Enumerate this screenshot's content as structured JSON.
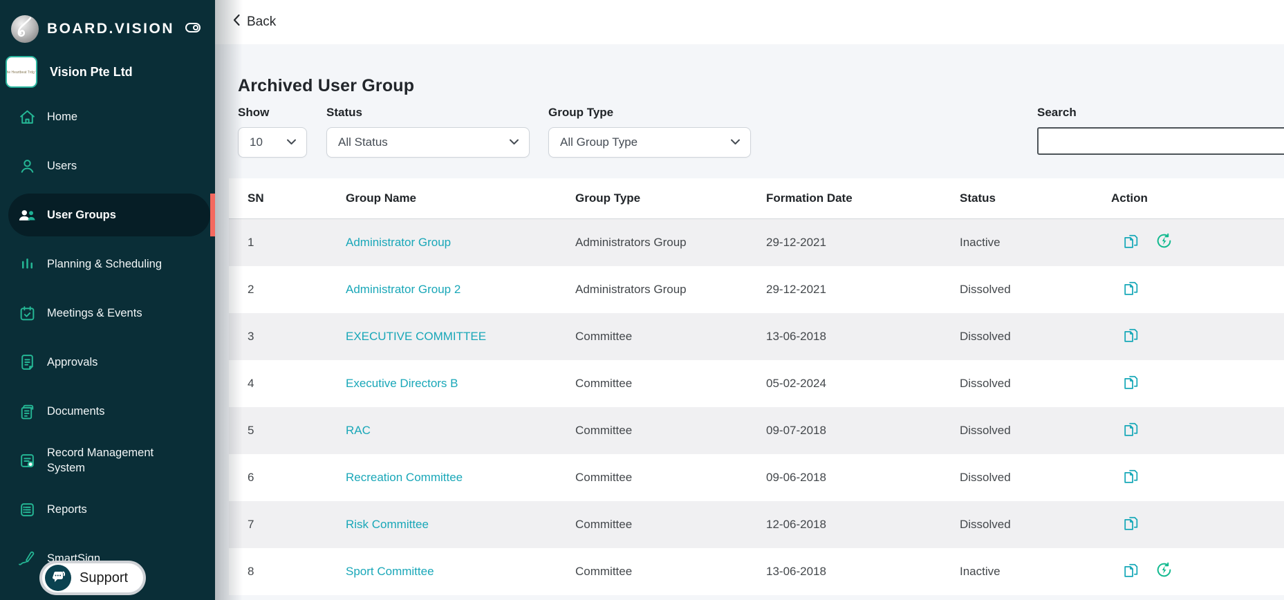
{
  "brand": {
    "name": "BOARD.VISION"
  },
  "sidebar": {
    "company": {
      "name": "Vision Pte Ltd"
    },
    "items": [
      {
        "label": "Home",
        "icon": "home-icon",
        "active": false
      },
      {
        "label": "Users",
        "icon": "user-icon",
        "active": false
      },
      {
        "label": "User Groups",
        "icon": "user-groups-icon",
        "active": true
      },
      {
        "label": "Planning & Scheduling",
        "icon": "chart-bars-icon",
        "active": false
      },
      {
        "label": "Meetings & Events",
        "icon": "calendar-check-icon",
        "active": false
      },
      {
        "label": "Approvals",
        "icon": "approvals-document-icon",
        "active": false
      },
      {
        "label": "Documents",
        "icon": "documents-icon",
        "active": false
      },
      {
        "label": "Record Management System",
        "icon": "record-search-icon",
        "active": false
      },
      {
        "label": "Reports",
        "icon": "report-list-icon",
        "active": false
      },
      {
        "label": "SmartSign",
        "icon": "pen-icon",
        "active": false
      }
    ],
    "support_label": "Support"
  },
  "topbar": {
    "back_label": "Back"
  },
  "page": {
    "title": "Archived User Group",
    "filters": {
      "show": {
        "label": "Show",
        "value": "10"
      },
      "status": {
        "label": "Status",
        "value": "All Status"
      },
      "group_type": {
        "label": "Group Type",
        "value": "All Group Type"
      },
      "search": {
        "label": "Search",
        "value": "",
        "placeholder": ""
      }
    }
  },
  "table": {
    "columns": [
      "SN",
      "Group Name",
      "Group Type",
      "Formation Date",
      "Status",
      "Action"
    ],
    "rows": [
      {
        "sn": "1",
        "group_name": "Administrator Group",
        "group_type": "Administrators Group",
        "formation_date": "29-12-2021",
        "status": "Inactive",
        "actions": [
          "copy",
          "reactivate"
        ]
      },
      {
        "sn": "2",
        "group_name": "Administrator Group 2",
        "group_type": "Administrators Group",
        "formation_date": "29-12-2021",
        "status": "Dissolved",
        "actions": [
          "copy"
        ]
      },
      {
        "sn": "3",
        "group_name": "EXECUTIVE COMMITTEE",
        "group_type": "Committee",
        "formation_date": "13-06-2018",
        "status": "Dissolved",
        "actions": [
          "copy"
        ]
      },
      {
        "sn": "4",
        "group_name": "Executive Directors B",
        "group_type": "Committee",
        "formation_date": "05-02-2024",
        "status": "Dissolved",
        "actions": [
          "copy"
        ]
      },
      {
        "sn": "5",
        "group_name": "RAC",
        "group_type": "Committee",
        "formation_date": "09-07-2018",
        "status": "Dissolved",
        "actions": [
          "copy"
        ]
      },
      {
        "sn": "6",
        "group_name": "Recreation Committee",
        "group_type": "Committee",
        "formation_date": "09-06-2018",
        "status": "Dissolved",
        "actions": [
          "copy"
        ]
      },
      {
        "sn": "7",
        "group_name": "Risk Committee",
        "group_type": "Committee",
        "formation_date": "12-06-2018",
        "status": "Dissolved",
        "actions": [
          "copy"
        ]
      },
      {
        "sn": "8",
        "group_name": "Sport Committee",
        "group_type": "Committee",
        "formation_date": "13-06-2018",
        "status": "Inactive",
        "actions": [
          "copy",
          "reactivate"
        ]
      }
    ]
  },
  "colors": {
    "sidebar_bg": "#0a2e37",
    "active_item_bg": "#061e26",
    "active_accent_red": "#f4695f",
    "icon_teal": "#25b795",
    "link_teal": "#19a7b8",
    "copy_icon": "#17a8b8",
    "reactivate_icon": "#10b98e",
    "row_stripe": "#f0f0f2",
    "main_bg": "#f4f6f9"
  }
}
